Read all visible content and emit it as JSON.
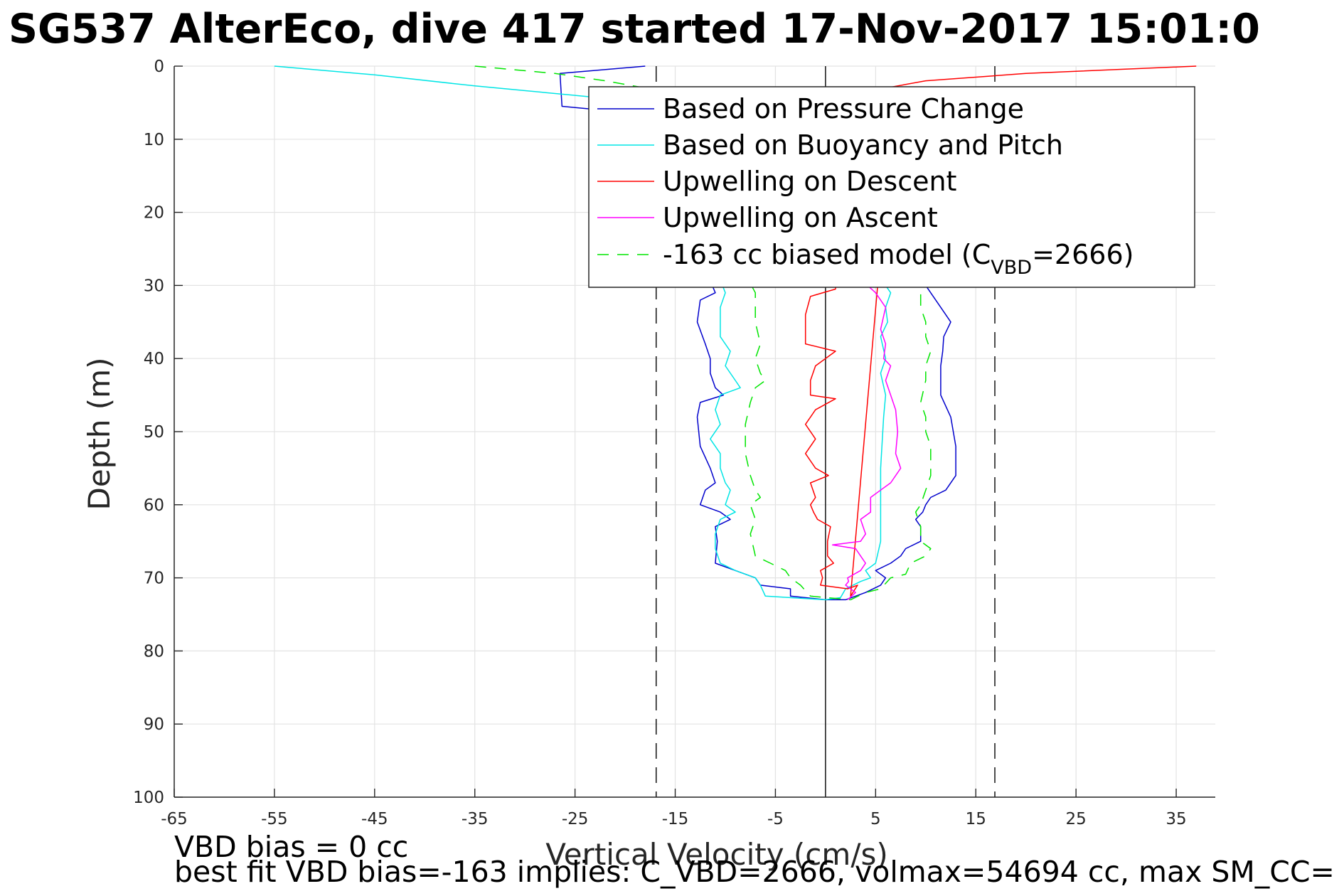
{
  "chart_data": {
    "type": "line",
    "title": "SG537 AlterEco, dive 417 started 17-Nov-2017 15:01:0",
    "xlabel": "Vertical Velocity (cm/s)",
    "ylabel": "Depth (m)",
    "xlim": [
      -65,
      40
    ],
    "ylim": [
      0,
      100
    ],
    "y_reversed": true,
    "grid": true,
    "legend_position": "top-right",
    "xticks": [
      -65,
      -55,
      -45,
      -35,
      -25,
      -15,
      -5,
      5,
      15,
      25,
      35
    ],
    "xtick_labels": [
      "-65",
      "-55",
      "-45",
      "-35",
      "-25",
      "-15",
      "-5",
      "5",
      "15",
      "25",
      "35"
    ],
    "yticks": [
      0,
      10,
      20,
      30,
      40,
      50,
      60,
      70,
      80,
      90,
      100
    ],
    "ytick_labels": [
      "0",
      "10",
      "20",
      "30",
      "40",
      "50",
      "60",
      "70",
      "80",
      "90",
      "100"
    ],
    "reference_lines": [
      {
        "x": 0,
        "style": "solid",
        "color": "#000000"
      },
      {
        "x": -16.9,
        "style": "dashed",
        "color": "#000000"
      },
      {
        "x": 16.9,
        "style": "dashed",
        "color": "#000000"
      }
    ],
    "series": [
      {
        "name": "Based on Pressure Change",
        "color": "#0000cc",
        "dash": "solid",
        "points": [
          [
            -18,
            0
          ],
          [
            -26.5,
            1
          ],
          [
            -26.3,
            5.5
          ],
          [
            -18.5,
            6.5
          ],
          [
            -11,
            31
          ],
          [
            -12.5,
            32
          ],
          [
            -12.8,
            35
          ],
          [
            -12,
            38
          ],
          [
            -11.5,
            40
          ],
          [
            -11.5,
            42
          ],
          [
            -11,
            44
          ],
          [
            -10.2,
            45
          ],
          [
            -12.5,
            46
          ],
          [
            -12.8,
            48
          ],
          [
            -12.5,
            52
          ],
          [
            -11.5,
            55
          ],
          [
            -11,
            57
          ],
          [
            -12,
            58
          ],
          [
            -12.5,
            60
          ],
          [
            -10.5,
            61
          ],
          [
            -9.5,
            62
          ],
          [
            -11,
            63
          ],
          [
            -10.8,
            65
          ],
          [
            -11,
            68
          ],
          [
            -9,
            69
          ],
          [
            -7,
            70
          ],
          [
            -6.5,
            71
          ],
          [
            -3.5,
            71.5
          ],
          [
            -3.5,
            72.5
          ],
          [
            0,
            73
          ],
          [
            2,
            73
          ],
          [
            4,
            72
          ],
          [
            5.5,
            71
          ],
          [
            6,
            70
          ],
          [
            5,
            69
          ],
          [
            6.5,
            68
          ],
          [
            7.5,
            67
          ],
          [
            8,
            66
          ],
          [
            9.5,
            65
          ],
          [
            9.5,
            63
          ],
          [
            9,
            62
          ],
          [
            9.7,
            61
          ],
          [
            10,
            60
          ],
          [
            10.5,
            59
          ],
          [
            12,
            58
          ],
          [
            13,
            56
          ],
          [
            13,
            52
          ],
          [
            12.5,
            48
          ],
          [
            11.5,
            45
          ],
          [
            11.5,
            41
          ],
          [
            11.7,
            39
          ],
          [
            11.8,
            37
          ],
          [
            12.5,
            35
          ],
          [
            11.5,
            33
          ],
          [
            10.5,
            31
          ],
          [
            10,
            30
          ]
        ]
      },
      {
        "name": "Based on Buoyancy and Pitch",
        "color": "#00e5e5",
        "dash": "solid",
        "points": [
          [
            -55,
            0
          ],
          [
            -45,
            1.2
          ],
          [
            -35,
            2.7
          ],
          [
            -25,
            4
          ],
          [
            -17.5,
            5
          ],
          [
            -10,
            31
          ],
          [
            -10.5,
            33
          ],
          [
            -10.5,
            37
          ],
          [
            -9.5,
            39
          ],
          [
            -10,
            41
          ],
          [
            -9,
            43
          ],
          [
            -8.5,
            44
          ],
          [
            -10.5,
            45
          ],
          [
            -11,
            47
          ],
          [
            -10.5,
            49
          ],
          [
            -11.5,
            51
          ],
          [
            -10.5,
            53
          ],
          [
            -10.5,
            55
          ],
          [
            -10,
            57
          ],
          [
            -9.5,
            58
          ],
          [
            -10,
            60
          ],
          [
            -9,
            61
          ],
          [
            -10.5,
            62
          ],
          [
            -11,
            64
          ],
          [
            -11,
            66
          ],
          [
            -10.5,
            68
          ],
          [
            -9,
            69
          ],
          [
            -7,
            70
          ],
          [
            -6.5,
            71
          ],
          [
            -6,
            72.5
          ],
          [
            0,
            73
          ],
          [
            1.5,
            72.7
          ],
          [
            2,
            71.5
          ],
          [
            3.5,
            70.5
          ],
          [
            4.5,
            70
          ],
          [
            4,
            69
          ],
          [
            5,
            68
          ],
          [
            5.5,
            65
          ],
          [
            5.5,
            55
          ],
          [
            5.8,
            48
          ],
          [
            6,
            45
          ],
          [
            5.5,
            42
          ],
          [
            6,
            40
          ],
          [
            5.5,
            37
          ],
          [
            6.2,
            35
          ],
          [
            6,
            33
          ],
          [
            6.5,
            31
          ],
          [
            6,
            30
          ]
        ]
      },
      {
        "name": "Upwelling on Descent",
        "color": "#ff0000",
        "dash": "solid",
        "points": [
          [
            37,
            0
          ],
          [
            20,
            1
          ],
          [
            10,
            2
          ],
          [
            2,
            4
          ],
          [
            1,
            30.5
          ],
          [
            -1.5,
            31.5
          ],
          [
            -2,
            34
          ],
          [
            -2,
            38
          ],
          [
            1,
            39
          ],
          [
            -1,
            41
          ],
          [
            -1.5,
            43
          ],
          [
            -1.5,
            45
          ],
          [
            1,
            45.5
          ],
          [
            -1,
            47
          ],
          [
            -2,
            49
          ],
          [
            -1,
            51
          ],
          [
            -2,
            53
          ],
          [
            -1,
            55
          ],
          [
            0.3,
            56
          ],
          [
            -1.5,
            57
          ],
          [
            -1,
            59
          ],
          [
            -1.5,
            60
          ],
          [
            -1.2,
            61
          ],
          [
            -0.8,
            62
          ],
          [
            0.5,
            63
          ],
          [
            0.2,
            65
          ],
          [
            0.2,
            67
          ],
          [
            0.8,
            68
          ],
          [
            -0.5,
            69
          ],
          [
            -0.3,
            70
          ],
          [
            -0.5,
            71
          ],
          [
            2.2,
            71.5
          ],
          [
            3.2,
            71
          ],
          [
            2.5,
            72.5
          ],
          [
            5.2,
            30
          ]
        ]
      },
      {
        "name": "Upwelling on Ascent",
        "color": "#ff00ff",
        "dash": "solid",
        "points": [
          [
            2.2,
            73
          ],
          [
            3,
            72
          ],
          [
            2,
            71
          ],
          [
            2.3,
            70.5
          ],
          [
            2.2,
            70
          ],
          [
            3.5,
            69
          ],
          [
            4,
            68
          ],
          [
            3.5,
            67
          ],
          [
            3,
            66
          ],
          [
            0.7,
            65.5
          ],
          [
            3.5,
            65
          ],
          [
            4,
            64
          ],
          [
            3.5,
            62
          ],
          [
            4.5,
            61
          ],
          [
            4.5,
            59
          ],
          [
            5.5,
            58
          ],
          [
            6.5,
            57
          ],
          [
            7.5,
            55
          ],
          [
            7,
            53
          ],
          [
            7.2,
            50
          ],
          [
            7,
            47
          ],
          [
            6.5,
            45
          ],
          [
            6,
            43
          ],
          [
            6.5,
            41
          ],
          [
            5.8,
            40
          ],
          [
            6,
            38
          ],
          [
            5.5,
            36
          ],
          [
            6,
            33
          ],
          [
            5,
            31
          ],
          [
            4.2,
            30
          ]
        ]
      },
      {
        "name": "-163 cc biased model (C_VBD=2666)",
        "color": "#00e500",
        "dash": "dashed",
        "points": [
          [
            -35,
            0
          ],
          [
            -27,
            1
          ],
          [
            -22,
            2
          ],
          [
            -18,
            3
          ],
          [
            -7,
            31
          ],
          [
            -7,
            35
          ],
          [
            -6.5,
            38
          ],
          [
            -7,
            40
          ],
          [
            -6.5,
            42
          ],
          [
            -6,
            43
          ],
          [
            -7,
            44
          ],
          [
            -7.5,
            46
          ],
          [
            -8,
            49
          ],
          [
            -8,
            53
          ],
          [
            -7.5,
            56
          ],
          [
            -7,
            58
          ],
          [
            -6.5,
            59
          ],
          [
            -7.5,
            60
          ],
          [
            -7,
            62
          ],
          [
            -7.5,
            64
          ],
          [
            -7,
            67
          ],
          [
            -5.5,
            68
          ],
          [
            -4,
            69
          ],
          [
            -3.5,
            70
          ],
          [
            -2.5,
            71
          ],
          [
            -1.5,
            72.5
          ],
          [
            2.5,
            73
          ],
          [
            4,
            72
          ],
          [
            5.5,
            71.5
          ],
          [
            6.5,
            70
          ],
          [
            8,
            69.5
          ],
          [
            8.5,
            68
          ],
          [
            10,
            67
          ],
          [
            10.5,
            66
          ],
          [
            9.5,
            65
          ],
          [
            9.5,
            63
          ],
          [
            9,
            61
          ],
          [
            9.5,
            60
          ],
          [
            10,
            58
          ],
          [
            10.5,
            56
          ],
          [
            10.5,
            52
          ],
          [
            10,
            50
          ],
          [
            10,
            48
          ],
          [
            9.5,
            46
          ],
          [
            10,
            43
          ],
          [
            10,
            41
          ],
          [
            10.5,
            39
          ],
          [
            10,
            37
          ],
          [
            10,
            35
          ],
          [
            9.5,
            33
          ],
          [
            9.5,
            31
          ],
          [
            9,
            30
          ]
        ]
      }
    ],
    "legend": {
      "entries": [
        {
          "label": "Based on Pressure Change",
          "color": "#0000cc",
          "dash": "solid"
        },
        {
          "label": "Based on Buoyancy and Pitch",
          "color": "#00e5e5",
          "dash": "solid"
        },
        {
          "label": "Upwelling on Descent",
          "color": "#ff0000",
          "dash": "solid"
        },
        {
          "label": "Upwelling on Ascent",
          "color": "#ff00ff",
          "dash": "solid"
        },
        {
          "label_prefix": "-163 cc biased model (C",
          "label_sub": "VBD",
          "label_suffix": "=2666)",
          "color": "#00e500",
          "dash": "dashed"
        }
      ]
    }
  },
  "footer": {
    "line1": "VBD bias = 0 cc",
    "line2": "best fit VBD bias=-163 implies: C_VBD=2666, volmax=54694 cc, max SM_CC="
  }
}
